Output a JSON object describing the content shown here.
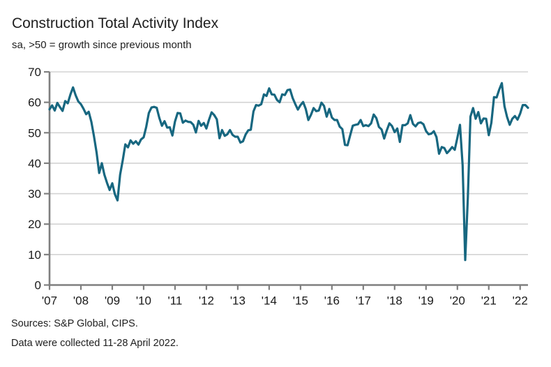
{
  "header": {
    "title": "Construction Total Activity Index",
    "subtitle": "sa, >50 = growth since previous month"
  },
  "footer": {
    "sources": "Sources: S&P Global, CIPS.",
    "note": "Data were collected 11-28 April 2022."
  },
  "colors": {
    "line": "#176780",
    "grid": "#d3d3d3",
    "axis": "#7f7f7f",
    "text": "#1a1a1a",
    "background": "#ffffff"
  },
  "chart_data": {
    "type": "line",
    "title": "Construction Total Activity Index",
    "subtitle": "sa, >50 = growth since previous month",
    "frequency": "monthly",
    "x_start": "2007-01",
    "x_end": "2022-04",
    "xticklabels": [
      "'07",
      "'08",
      "'09",
      "'10",
      "'11",
      "'12",
      "'13",
      "'14",
      "'15",
      "'16",
      "'17",
      "'18",
      "'19",
      "'20",
      "'21",
      "'22"
    ],
    "yticks": [
      0,
      10,
      20,
      30,
      40,
      50,
      60,
      70
    ],
    "ylim": [
      0,
      70
    ],
    "grid": "horizontal",
    "legend": "none",
    "series": [
      {
        "name": "Construction Total Activity Index",
        "values": [
          57.7,
          59.0,
          57.3,
          59.8,
          58.4,
          57.2,
          60.4,
          59.7,
          62.6,
          64.9,
          62.3,
          60.3,
          59.4,
          57.9,
          56.1,
          56.9,
          53.6,
          48.9,
          43.5,
          36.8,
          40.0,
          36.2,
          33.5,
          31.2,
          33.4,
          29.8,
          27.8,
          36.2,
          41.0,
          46.2,
          45.2,
          47.5,
          46.4,
          47.2,
          46.1,
          47.8,
          48.5,
          52.0,
          56.5,
          58.3,
          58.5,
          58.2,
          54.9,
          52.3,
          53.8,
          51.7,
          51.8,
          49.1,
          53.7,
          56.5,
          56.4,
          53.3,
          54.0,
          53.6,
          53.5,
          52.6,
          50.1,
          53.9,
          52.3,
          53.2,
          51.4,
          54.3,
          56.7,
          55.8,
          54.4,
          48.2,
          50.9,
          49.0,
          49.5,
          50.9,
          49.3,
          48.7,
          48.7,
          46.8,
          47.2,
          49.4,
          50.8,
          51.0,
          57.0,
          59.1,
          58.9,
          59.4,
          62.6,
          62.1,
          64.6,
          62.6,
          62.5,
          60.8,
          60.0,
          62.6,
          62.4,
          64.0,
          64.2,
          61.4,
          59.4,
          57.6,
          59.1,
          60.1,
          57.8,
          54.2,
          55.9,
          58.1,
          57.1,
          57.3,
          59.9,
          58.8,
          55.3,
          57.8,
          55.0,
          54.2,
          54.2,
          52.0,
          51.2,
          46.0,
          45.9,
          49.2,
          52.3,
          52.6,
          52.8,
          54.2,
          52.2,
          52.5,
          52.2,
          53.1,
          56.0,
          54.8,
          51.9,
          51.1,
          48.1,
          50.8,
          53.1,
          52.2,
          50.2,
          51.4,
          47.0,
          52.5,
          52.5,
          53.1,
          55.8,
          52.9,
          52.1,
          53.2,
          53.4,
          52.8,
          50.6,
          49.5,
          49.7,
          50.5,
          48.6,
          43.1,
          45.3,
          45.0,
          43.3,
          44.2,
          45.3,
          44.4,
          48.4,
          52.6,
          39.3,
          8.2,
          28.9,
          55.3,
          58.1,
          54.6,
          56.8,
          53.1,
          54.7,
          54.6,
          49.2,
          53.3,
          61.7,
          61.6,
          64.2,
          66.3,
          58.7,
          55.2,
          52.6,
          54.6,
          55.5,
          54.3,
          56.3,
          59.1,
          59.1,
          58.2
        ]
      }
    ]
  }
}
